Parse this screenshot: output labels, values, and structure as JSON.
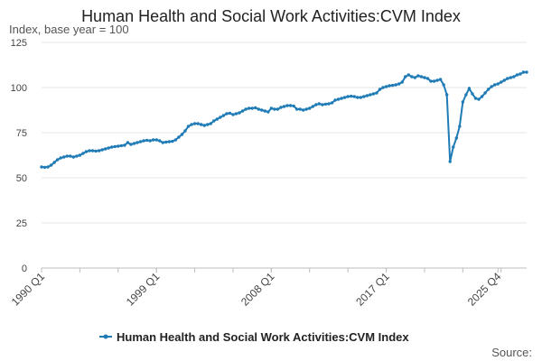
{
  "chart_data": {
    "type": "line",
    "title": "Human Health and Social Work Activities:CVM Index",
    "ylabel": "Index, base year = 100",
    "xlabel": "",
    "ylim": [
      0,
      125
    ],
    "yticks": [
      0,
      25,
      50,
      75,
      100,
      125
    ],
    "xticks": [
      "1990 Q1",
      "1999 Q1",
      "2008 Q1",
      "2017 Q1",
      "2025 Q4"
    ],
    "grid": true,
    "legend_position": "bottom",
    "source_label": "Source:",
    "color": "#1f7bb6",
    "series": [
      {
        "name": "Human Health and Social Work Activities:CVM Index",
        "x_start": "1990 Q1",
        "frequency": "quarterly",
        "values": [
          56,
          55.8,
          56,
          57,
          58.5,
          60,
          61,
          61.5,
          62,
          62,
          61.5,
          62,
          62.5,
          63.5,
          64.5,
          65,
          65,
          64.8,
          65,
          65.5,
          66,
          66.5,
          67,
          67.3,
          67.5,
          67.8,
          68,
          69.5,
          68.5,
          69,
          69.5,
          70,
          70.5,
          70.8,
          70.5,
          71,
          71,
          70.5,
          69.5,
          69.8,
          70,
          70.2,
          71,
          72.5,
          74,
          76,
          78.5,
          79.5,
          80,
          80,
          79.5,
          79,
          79.5,
          80,
          81.5,
          82.5,
          83.5,
          84.5,
          85.5,
          85.8,
          85,
          85.5,
          86,
          87,
          88,
          88.5,
          88.5,
          88.8,
          88,
          87.5,
          87,
          86.5,
          88.5,
          88,
          88,
          89,
          89.5,
          90,
          90,
          89.8,
          88,
          88,
          87.5,
          88,
          88.5,
          89.5,
          90.5,
          91,
          90.5,
          90.8,
          91,
          91.5,
          93,
          93.5,
          94,
          94.5,
          95,
          95.2,
          95,
          94.5,
          94.5,
          95,
          95.5,
          96,
          96.5,
          97,
          99,
          100,
          100.5,
          101,
          101.2,
          101.5,
          102,
          103,
          106,
          107,
          106,
          105.5,
          106.5,
          106,
          105.5,
          105,
          103.5,
          103.5,
          104,
          104.5,
          101.5,
          96,
          59,
          67,
          72,
          78.5,
          92,
          96,
          99.5,
          96.5,
          94,
          93.5,
          95,
          97,
          99,
          100.5,
          101.5,
          102,
          103,
          104,
          105,
          105.5,
          106,
          107,
          107.5,
          108.5,
          108.5
        ]
      }
    ]
  }
}
